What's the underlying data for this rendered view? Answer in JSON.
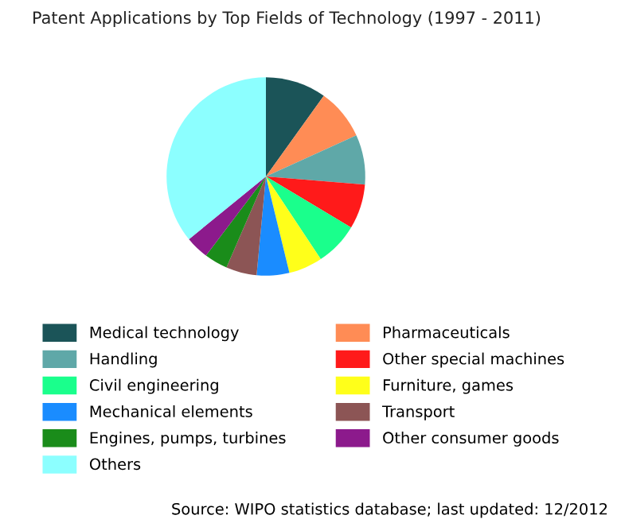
{
  "chart_data": {
    "type": "pie",
    "title": "Patent Applications by Top Fields of Technology (1997 - 2011)",
    "categories": [
      "Medical technology",
      "Pharmaceuticals",
      "Handling",
      "Other special machines",
      "Civil engineering",
      "Furniture, games",
      "Mechanical elements",
      "Transport",
      "Engines, pumps, turbines",
      "Other consumer goods",
      "Others"
    ],
    "values": [
      9.9,
      8.3,
      8.1,
      7.3,
      7.1,
      5.5,
      5.3,
      5.0,
      3.8,
      3.8,
      35.9
    ],
    "colors": [
      "#1b5458",
      "#ff8c55",
      "#5fa8a8",
      "#ff1a1a",
      "#1aff8c",
      "#ffff1a",
      "#1a8cff",
      "#8c5555",
      "#1a8c1a",
      "#8c1a8c",
      "#8cffff"
    ],
    "legend": "bottom",
    "annotations": [
      "Source: WIPO statistics database; last updated: 12/2012"
    ]
  }
}
